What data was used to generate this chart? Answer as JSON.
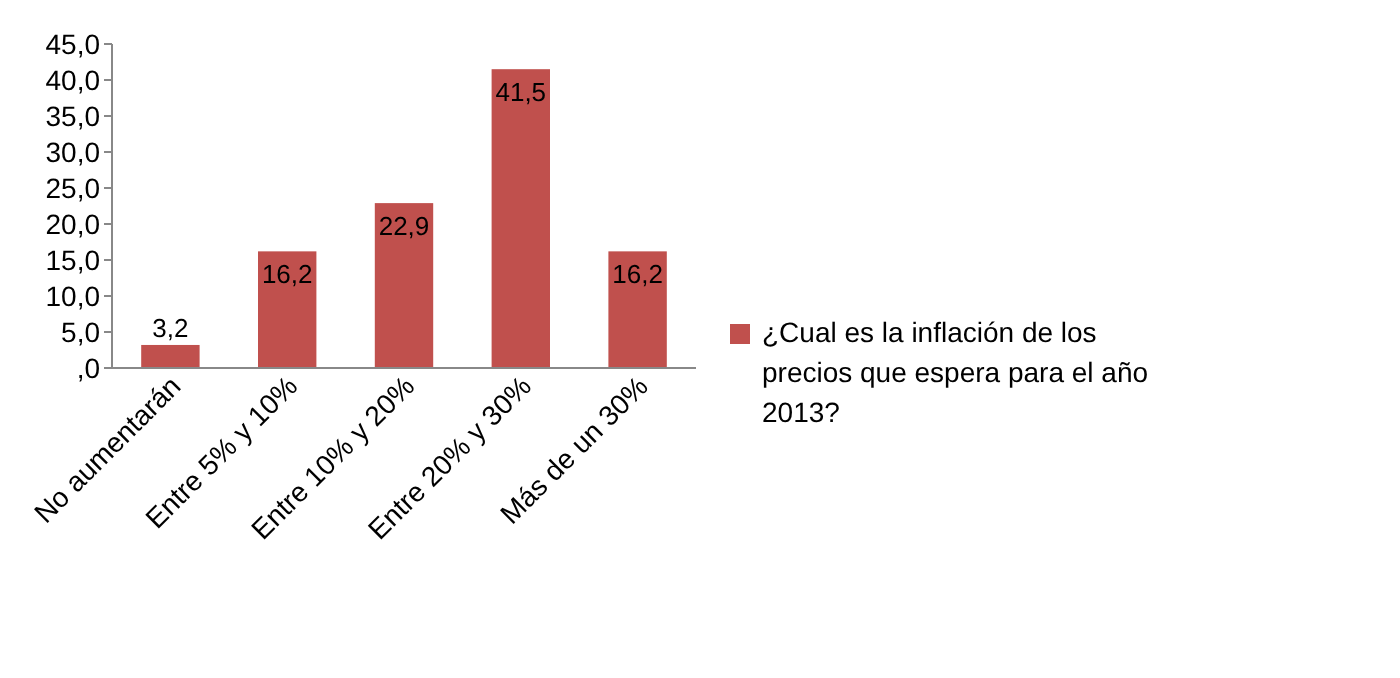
{
  "chart_data": {
    "type": "bar",
    "categories": [
      "No aumentarán",
      "Entre 5% y 10%",
      "Entre 10% y 20%",
      "Entre 20% y 30%",
      "Más de un 30%"
    ],
    "series": [
      {
        "name": "¿Cual es la inflación de los precios que espera para el año 2013?",
        "color": "#c0504d",
        "values": [
          3.2,
          16.2,
          22.9,
          41.5,
          16.2
        ],
        "value_labels": [
          "3,2",
          "16,2",
          "22,9",
          "41,5",
          "16,2"
        ]
      }
    ],
    "ylim": [
      0,
      45
    ],
    "yticks": [
      {
        "value": 0,
        "label": ",0"
      },
      {
        "value": 5,
        "label": "5,0"
      },
      {
        "value": 10,
        "label": "10,0"
      },
      {
        "value": 15,
        "label": "15,0"
      },
      {
        "value": 20,
        "label": "20,0"
      },
      {
        "value": 25,
        "label": "25,0"
      },
      {
        "value": 30,
        "label": "30,0"
      },
      {
        "value": 35,
        "label": "35,0"
      },
      {
        "value": 40,
        "label": "40,0"
      },
      {
        "value": 45,
        "label": "45,0"
      }
    ],
    "grid": false,
    "legend": "right"
  }
}
